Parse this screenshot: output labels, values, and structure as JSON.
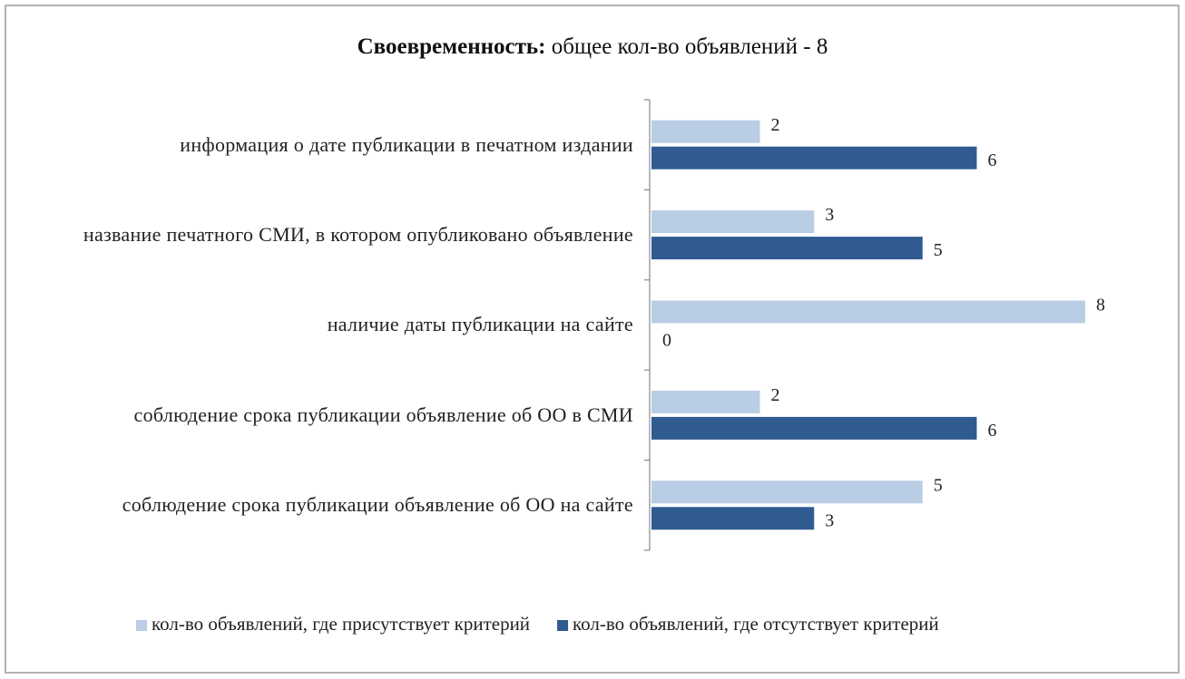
{
  "chart_data": {
    "type": "barh",
    "title": "Своевременность:",
    "subtitle": "общее кол-во объявлений - 8",
    "categories": [
      "информация о дате публикации в печатном издании",
      "название печатного СМИ, в котором опубликовано объявление",
      "наличие даты публикации на сайте",
      "соблюдение срока публикации объявление об ОО в СМИ",
      "соблюдение срока публикации объявление об ОО на сайте"
    ],
    "series": [
      {
        "name": "кол-во объявлений, где присутствует критерий",
        "color": "#b9cde5",
        "values": [
          2,
          3,
          8,
          2,
          5
        ]
      },
      {
        "name": "кол-во объявлений, где отсутствует критерий",
        "color": "#2f5b91",
        "values": [
          6,
          5,
          0,
          6,
          3
        ]
      }
    ],
    "xlim": [
      0,
      8
    ],
    "legend": "bottom"
  }
}
